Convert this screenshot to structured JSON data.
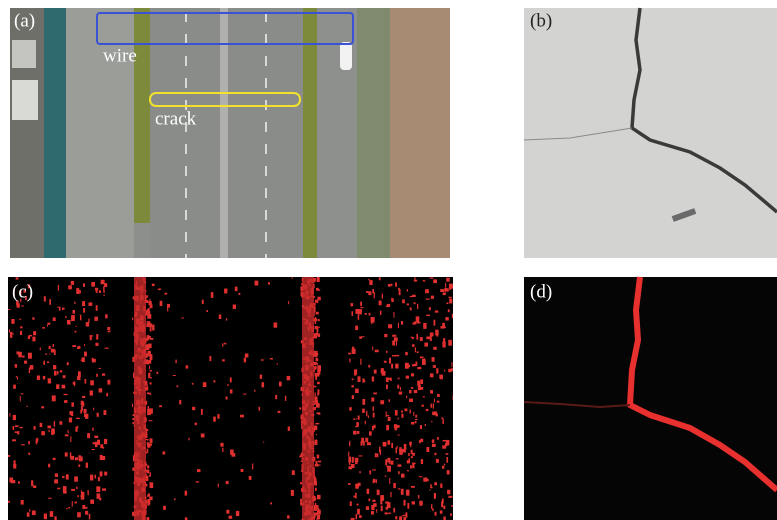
{
  "panels": [
    {
      "label": "(a)",
      "annotations": [
        "wire",
        "crack"
      ]
    },
    {
      "label": "(b)"
    },
    {
      "label": "(c)"
    },
    {
      "label": "(d)"
    }
  ]
}
